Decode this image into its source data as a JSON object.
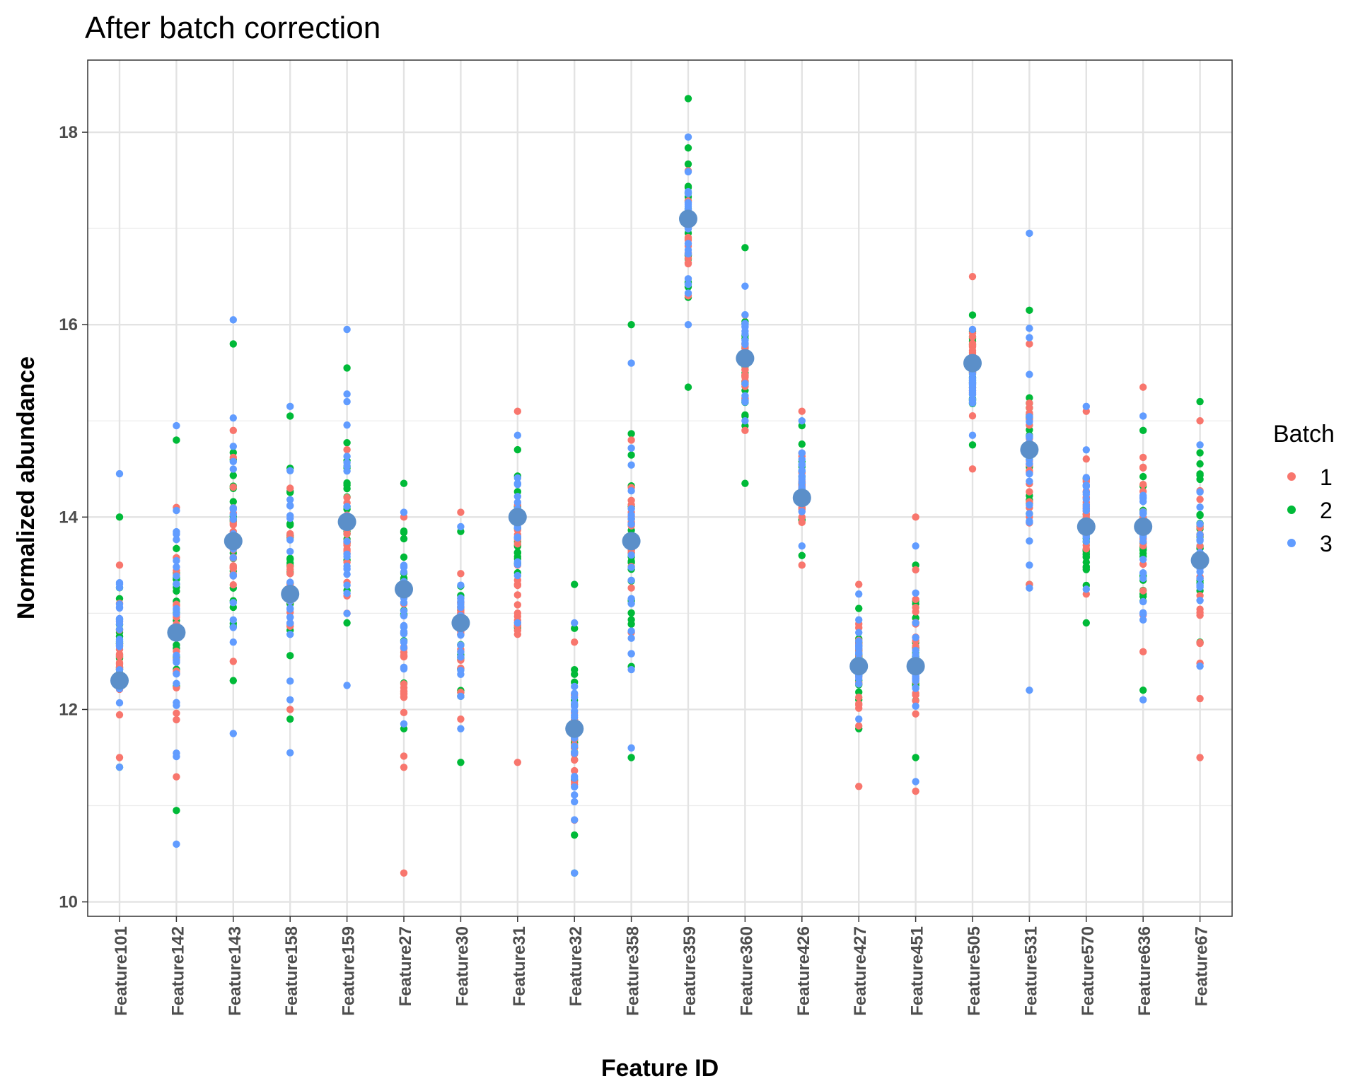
{
  "chart_data": {
    "type": "scatter",
    "title": "After batch correction",
    "xlabel": "Feature ID",
    "ylabel": "Normalized abundance",
    "ylim": [
      9.85,
      18.75
    ],
    "yticks": [
      10,
      12,
      14,
      16,
      18
    ],
    "grid": true,
    "legend": {
      "title": "Batch",
      "position": "right",
      "entries": [
        "1",
        "2",
        "3"
      ]
    },
    "colors": {
      "1": "#F8766D",
      "2": "#00BA38",
      "3": "#619CFF",
      "mean": "#5B8FC9"
    },
    "categories": [
      "Feature101",
      "Feature142",
      "Feature143",
      "Feature158",
      "Feature159",
      "Feature27",
      "Feature30",
      "Feature31",
      "Feature32",
      "Feature358",
      "Feature359",
      "Feature360",
      "Feature426",
      "Feature427",
      "Feature451",
      "Feature505",
      "Feature531",
      "Feature570",
      "Feature636",
      "Feature67"
    ],
    "means": [
      12.3,
      12.8,
      13.75,
      13.2,
      13.95,
      13.25,
      12.9,
      14.0,
      11.8,
      13.75,
      17.1,
      15.65,
      14.2,
      12.45,
      12.45,
      15.6,
      14.7,
      13.9,
      13.9,
      13.55
    ],
    "ranges": [
      {
        "1": [
          11.5,
          13.5
        ],
        "2": [
          11.4,
          14.0
        ],
        "3": [
          11.4,
          14.45
        ]
      },
      {
        "1": [
          11.3,
          14.1
        ],
        "2": [
          10.95,
          14.8
        ],
        "3": [
          10.6,
          14.95
        ]
      },
      {
        "1": [
          12.5,
          14.9
        ],
        "2": [
          12.3,
          15.8
        ],
        "3": [
          11.75,
          16.05
        ]
      },
      {
        "1": [
          12.0,
          14.3
        ],
        "2": [
          11.9,
          15.05
        ],
        "3": [
          11.55,
          15.15
        ]
      },
      {
        "1": [
          13.0,
          14.7
        ],
        "2": [
          12.9,
          15.55
        ],
        "3": [
          12.25,
          15.95
        ]
      },
      {
        "1": [
          10.3,
          14.0
        ],
        "2": [
          11.8,
          14.35
        ],
        "3": [
          11.85,
          14.05
        ]
      },
      {
        "1": [
          11.9,
          14.05
        ],
        "2": [
          11.45,
          13.85
        ],
        "3": [
          11.8,
          13.9
        ]
      },
      {
        "1": [
          11.45,
          15.1
        ],
        "2": [
          12.85,
          14.7
        ],
        "3": [
          12.9,
          14.85
        ]
      },
      {
        "1": [
          10.85,
          12.7
        ],
        "2": [
          10.3,
          13.3
        ],
        "3": [
          10.3,
          12.9
        ]
      },
      {
        "1": [
          12.8,
          14.8
        ],
        "2": [
          11.5,
          16.0
        ],
        "3": [
          11.6,
          15.6
        ]
      },
      {
        "1": [
          16.3,
          17.6
        ],
        "2": [
          15.35,
          18.35
        ],
        "3": [
          16.0,
          17.95
        ]
      },
      {
        "1": [
          14.9,
          16.1
        ],
        "2": [
          14.35,
          16.8
        ],
        "3": [
          15.0,
          16.4
        ]
      },
      {
        "1": [
          13.5,
          15.1
        ],
        "2": [
          13.6,
          14.95
        ],
        "3": [
          13.7,
          15.0
        ]
      },
      {
        "1": [
          11.2,
          13.3
        ],
        "2": [
          11.8,
          13.05
        ],
        "3": [
          11.9,
          13.2
        ]
      },
      {
        "1": [
          11.15,
          14.0
        ],
        "2": [
          11.5,
          13.5
        ],
        "3": [
          11.25,
          13.7
        ]
      },
      {
        "1": [
          14.5,
          16.5
        ],
        "2": [
          14.75,
          16.1
        ],
        "3": [
          14.85,
          15.95
        ]
      },
      {
        "1": [
          13.3,
          15.8
        ],
        "2": [
          13.3,
          16.15
        ],
        "3": [
          12.2,
          16.95
        ]
      },
      {
        "1": [
          13.2,
          15.1
        ],
        "2": [
          12.9,
          14.4
        ],
        "3": [
          13.25,
          15.15
        ]
      },
      {
        "1": [
          12.6,
          15.35
        ],
        "2": [
          12.2,
          14.9
        ],
        "3": [
          12.1,
          15.05
        ]
      },
      {
        "1": [
          11.5,
          15.0
        ],
        "2": [
          12.7,
          15.2
        ],
        "3": [
          12.45,
          14.75
        ]
      }
    ]
  }
}
